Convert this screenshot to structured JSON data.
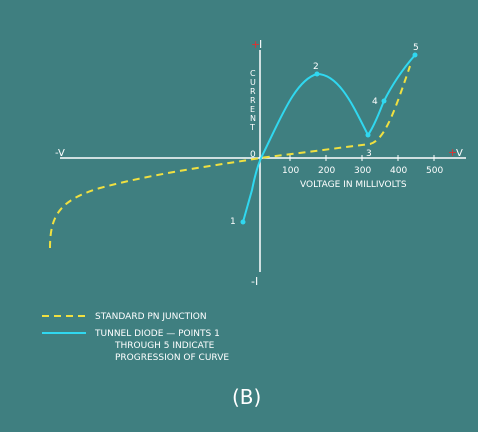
{
  "axes": {
    "plus_i": {
      "sign": "+",
      "letter": "I"
    },
    "minus_i": "-I",
    "minus_v": "-V",
    "plus_v": {
      "sign": "+",
      "letter": "V"
    },
    "origin": "0",
    "y_label": [
      "C",
      "U",
      "R",
      "R",
      "E",
      "N",
      "T"
    ],
    "x_label": "VOLTAGE IN MILLIVOLTS",
    "x_ticks": [
      "100",
      "200",
      "300",
      "400",
      "500"
    ]
  },
  "points": [
    "1",
    "2",
    "3",
    "4",
    "5"
  ],
  "legend": {
    "pn": "STANDARD PN JUNCTION",
    "tunnel": [
      "TUNNEL DIODE — POINTS 1",
      "THROUGH 5 INDICATE",
      "PROGRESSION OF CURVE"
    ]
  },
  "caption": "(B)"
}
